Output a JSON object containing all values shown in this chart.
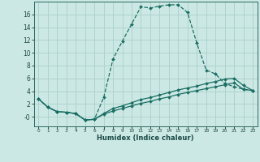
{
  "xlabel": "Humidex (Indice chaleur)",
  "bg_color": "#cce8e4",
  "grid_color": "#aacfcb",
  "line_color": "#1a6e64",
  "xlim": [
    -0.5,
    23.5
  ],
  "ylim": [
    -1.5,
    18.0
  ],
  "xticks": [
    0,
    1,
    2,
    3,
    4,
    5,
    6,
    7,
    8,
    9,
    10,
    11,
    12,
    13,
    14,
    15,
    16,
    17,
    18,
    19,
    20,
    21,
    22,
    23
  ],
  "yticks": [
    0,
    2,
    4,
    6,
    8,
    10,
    12,
    14,
    16
  ],
  "ytick_labels": [
    "-0",
    "2",
    "4",
    "6",
    "8",
    "10",
    "12",
    "14",
    "16"
  ],
  "line1_x": [
    0,
    1,
    2,
    3,
    4,
    5,
    6,
    7,
    8,
    9,
    10,
    11,
    12,
    13,
    14,
    15,
    16,
    17,
    18,
    19,
    20,
    21,
    22,
    23
  ],
  "line1_y": [
    2.8,
    1.5,
    0.8,
    0.7,
    0.5,
    -0.5,
    -0.4,
    3.0,
    9.0,
    11.8,
    14.5,
    17.2,
    17.0,
    17.3,
    17.5,
    17.5,
    16.3,
    11.5,
    7.3,
    6.7,
    5.2,
    4.7,
    4.3,
    4.1
  ],
  "line2_x": [
    0,
    1,
    2,
    3,
    4,
    5,
    6,
    7,
    8,
    9,
    10,
    11,
    12,
    13,
    14,
    15,
    16,
    17,
    18,
    19,
    20,
    21,
    22,
    23
  ],
  "line2_y": [
    2.8,
    1.5,
    0.8,
    0.7,
    0.5,
    -0.5,
    -0.4,
    0.5,
    1.3,
    1.7,
    2.2,
    2.7,
    3.0,
    3.4,
    3.8,
    4.2,
    4.5,
    4.8,
    5.2,
    5.5,
    5.9,
    6.0,
    4.9,
    4.1
  ],
  "line3_x": [
    0,
    1,
    2,
    3,
    4,
    5,
    6,
    7,
    8,
    9,
    10,
    11,
    12,
    13,
    14,
    15,
    16,
    17,
    18,
    19,
    20,
    21,
    22,
    23
  ],
  "line3_y": [
    2.8,
    1.5,
    0.8,
    0.7,
    0.5,
    -0.5,
    -0.4,
    0.4,
    0.9,
    1.3,
    1.7,
    2.1,
    2.4,
    2.8,
    3.1,
    3.5,
    3.8,
    4.1,
    4.4,
    4.7,
    5.0,
    5.3,
    4.3,
    4.1
  ]
}
